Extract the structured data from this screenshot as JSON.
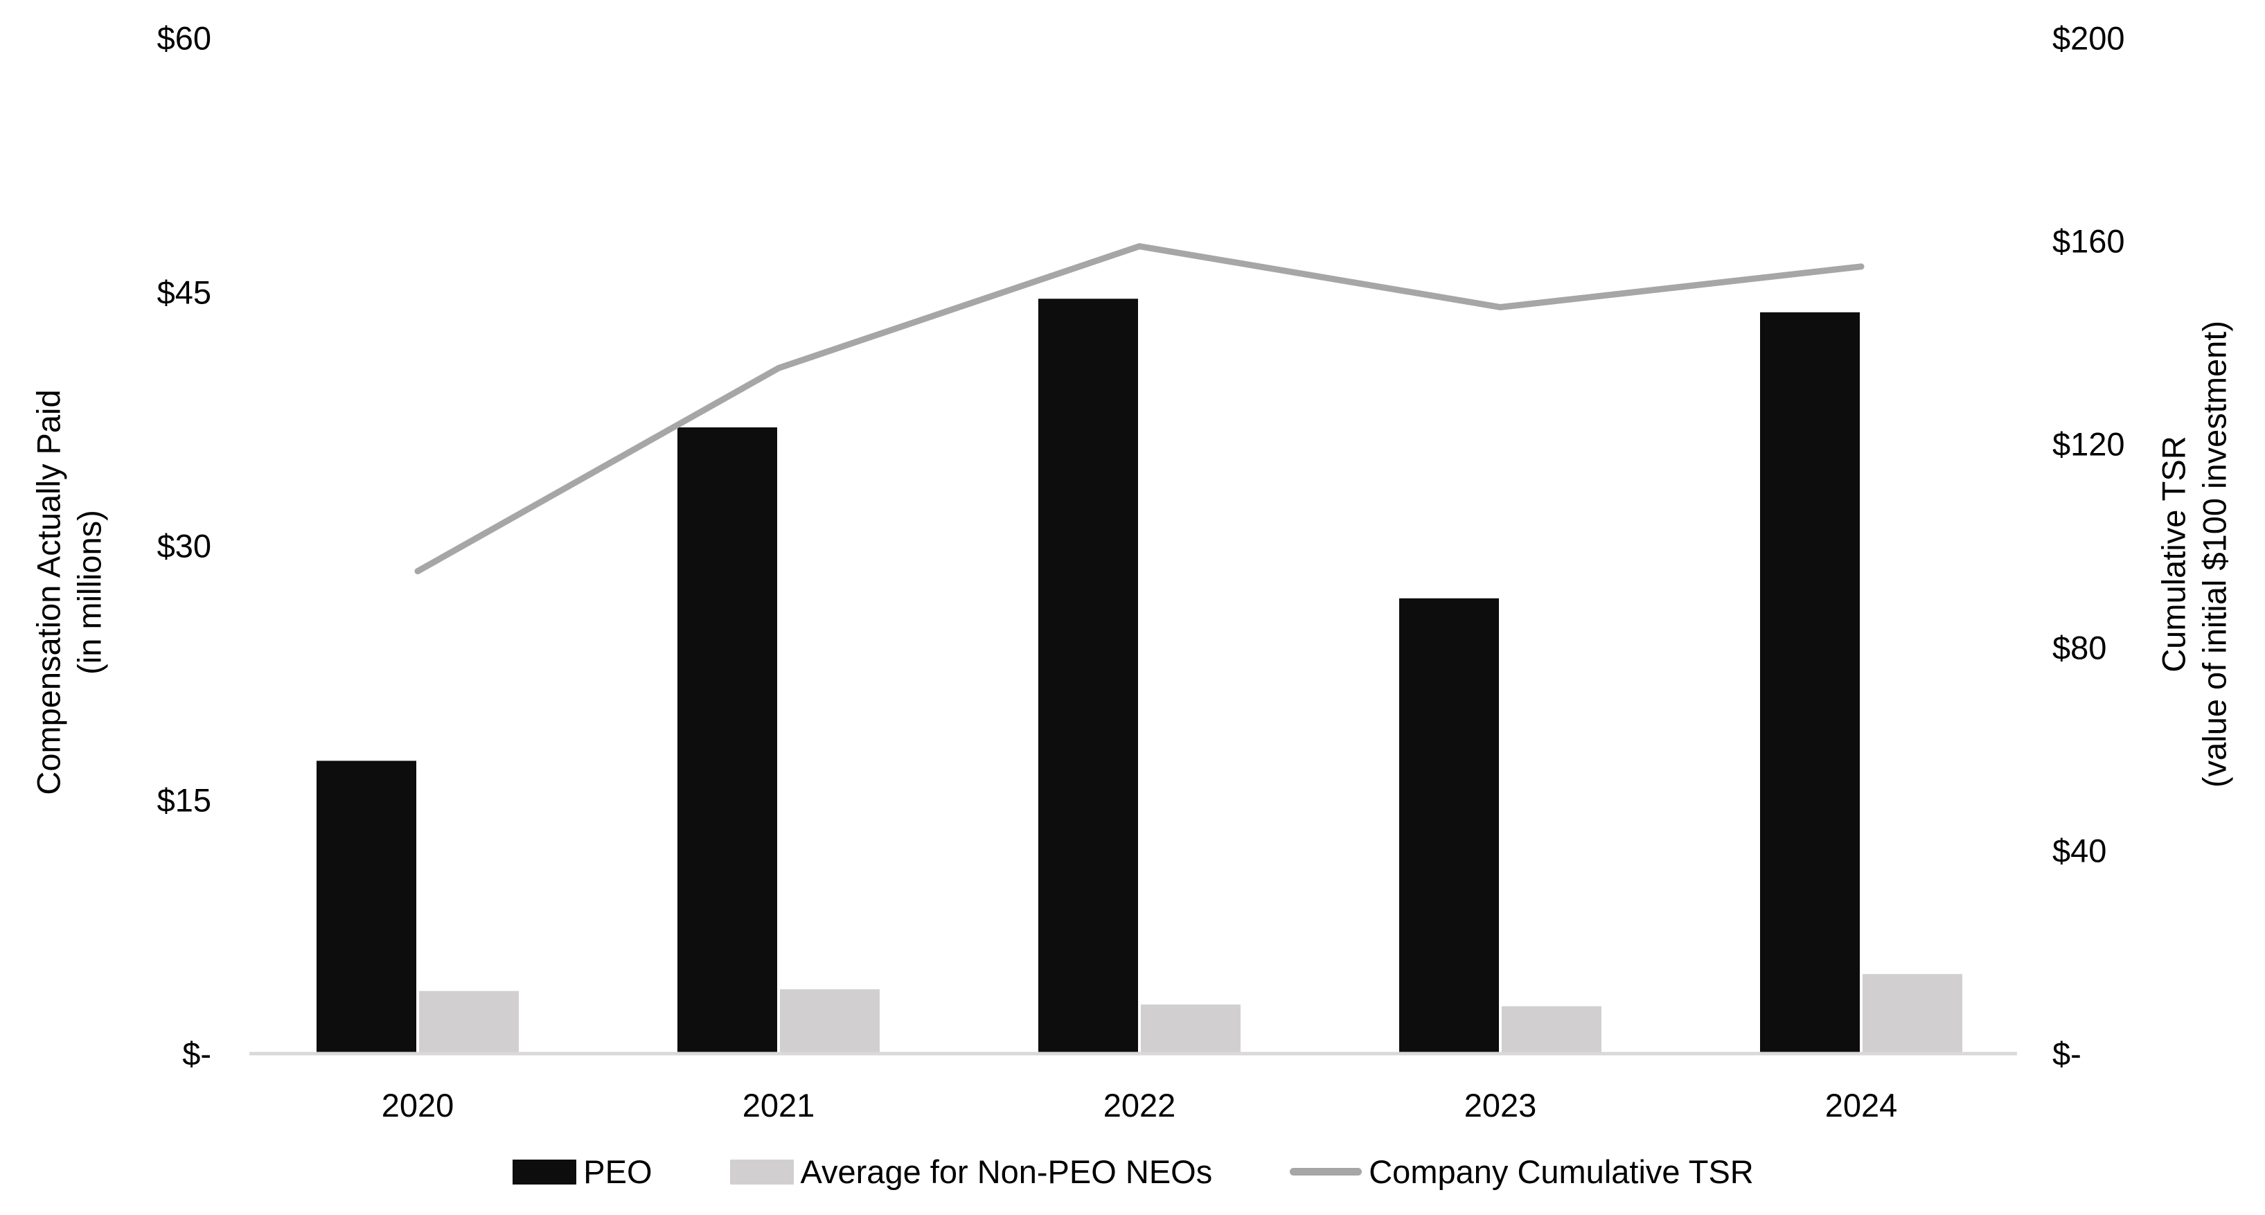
{
  "chart_data": {
    "type": "bar",
    "subtype": "combo-bar-line",
    "categories": [
      "2020",
      "2021",
      "2022",
      "2023",
      "2024"
    ],
    "series": [
      {
        "name": "PEO",
        "kind": "bar",
        "axis": "left",
        "color": "#0d0d0d",
        "values": [
          17.3,
          37.0,
          44.6,
          26.9,
          43.8
        ]
      },
      {
        "name": "Average for Non-PEO NEOs",
        "kind": "bar",
        "axis": "left",
        "color": "#d1cfcf",
        "values": [
          3.7,
          3.8,
          2.9,
          2.8,
          4.7
        ]
      },
      {
        "name": "Company Cumulative TSR",
        "kind": "line",
        "axis": "right",
        "color": "#a6a6a6",
        "values": [
          95,
          135,
          159,
          147,
          155
        ]
      }
    ],
    "left_axis": {
      "title_line1": "Compensation Actually Paid",
      "title_line2": "(in millions)",
      "ticks": [
        "$-",
        "$15",
        "$30",
        "$45",
        "$60"
      ],
      "tick_values": [
        0,
        15,
        30,
        45,
        60
      ],
      "min": 0,
      "max": 60
    },
    "right_axis": {
      "title_line1": "Cumulative TSR",
      "title_line2": "(value of initial $100 investment)",
      "ticks": [
        "$-",
        "$40",
        "$80",
        "$120",
        "$160",
        "$200"
      ],
      "tick_values": [
        0,
        40,
        80,
        120,
        160,
        200
      ],
      "min": 0,
      "max": 200
    },
    "grid": false,
    "legend_position": "bottom",
    "axis_line_color": "#d9d9d9",
    "text_color": "#000000"
  }
}
